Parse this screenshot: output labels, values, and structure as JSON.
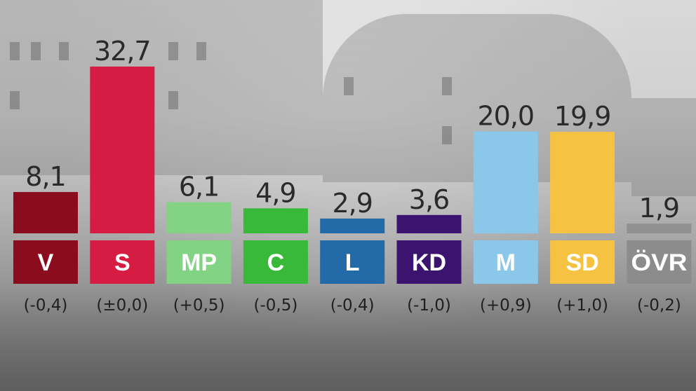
{
  "chart_data": {
    "type": "bar",
    "categories": [
      "V",
      "S",
      "MP",
      "C",
      "L",
      "KD",
      "M",
      "SD",
      "ÖVR"
    ],
    "values": [
      8.1,
      32.7,
      6.1,
      4.9,
      2.9,
      3.6,
      20.0,
      19.9,
      1.9
    ],
    "value_labels": [
      "8,1",
      "32,7",
      "6,1",
      "4,9",
      "2,9",
      "3,6",
      "20,0",
      "19,9",
      "1,9"
    ],
    "changes": [
      "(-0,4)",
      "(±0,0)",
      "(+0,5)",
      "(-0,5)",
      "(-0,4)",
      "(-1,0)",
      "(+0,9)",
      "(+1,0)",
      "(-0,2)"
    ],
    "colors": [
      "#8b0c1d",
      "#d61c42",
      "#83d384",
      "#39b93a",
      "#236aa8",
      "#3c1470",
      "#8ac7e8",
      "#f5c242",
      "#909090"
    ],
    "label_colors": [
      "#8b0c1d",
      "#d61c42",
      "#83d384",
      "#39b93a",
      "#236aa8",
      "#3c1470",
      "#8ac7e8",
      "#f5c242",
      "#8c8c8c"
    ],
    "ylim": [
      0,
      32.7
    ],
    "grid": false,
    "legend": "none"
  }
}
